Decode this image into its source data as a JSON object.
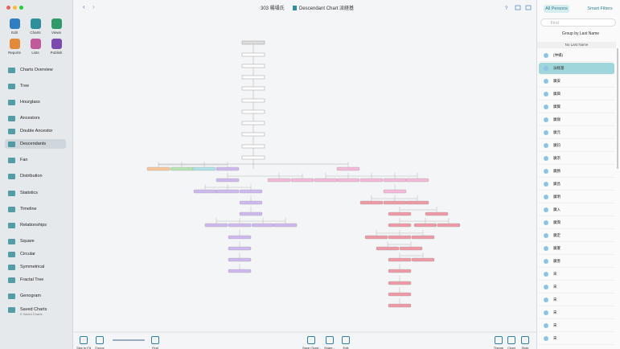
{
  "app_toolbar": {
    "buttons": [
      "Edit",
      "Charts",
      "Views",
      "Reports",
      "Lists",
      "Publish"
    ]
  },
  "sidebar": {
    "items": [
      "Charts Overview",
      "Tree",
      "Hourglass",
      "Ancestors",
      "Double Ancestor",
      "Descendants",
      "Fan",
      "Distribution",
      "Statistics",
      "Timeline",
      "Relationships",
      "Square",
      "Circular",
      "Symmetrical",
      "Fractal Tree",
      "Genogram",
      "Saved Charts"
    ],
    "selected": "Descendants",
    "saved_charts_note": "0 Saved Charts"
  },
  "header": {
    "person": "303 楊塤氏",
    "chart_title": "Descendant Chart 派経基"
  },
  "right_panel": {
    "tabs": [
      "All Persons",
      "Smart Filters"
    ],
    "search_placeholder": "Find",
    "group_by": "Group by Last Name",
    "section": "No Last Name",
    "persons": [
      "(仲楊)",
      "派経基",
      "廣安",
      "廣興",
      "廣賢",
      "廣錫",
      "廣元",
      "廣鈞",
      "廣宗",
      "廣勝",
      "廣昌",
      "廣明",
      "廣入",
      "廣潤",
      "廣定",
      "廣厦",
      "廣善",
      "宋",
      "宋",
      "宋",
      "宋",
      "宋",
      "宋"
    ],
    "selected_index": 1
  },
  "bottom_toolbar": {
    "buttons": [
      "Size to Fit",
      "Focus",
      "Find",
      "Save Chart...",
      "Share...",
      "Edit",
      "Theme",
      "Chart",
      "Style"
    ]
  }
}
